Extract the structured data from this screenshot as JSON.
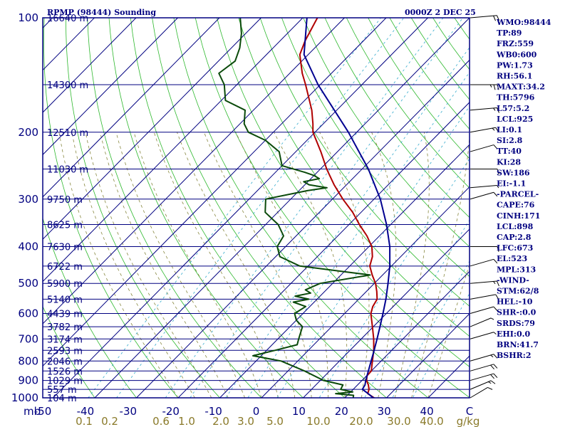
{
  "header": {
    "station": "RPMP (98444) Sounding",
    "time": "0000Z  2 DEC 25"
  },
  "chart_data": {
    "type": "line",
    "title": "RPMP (98444) Sounding",
    "subtitle": "0000Z  2 DEC 25",
    "xlabel": "°C",
    "ylabel": "mb",
    "temperature_range_c": [
      -50,
      50
    ],
    "pressure_range_mb": [
      1000,
      100
    ],
    "temperature_ticks": [
      "-50",
      "-40",
      "-30",
      "-20",
      "-10",
      "0",
      "10",
      "20",
      "30",
      "40",
      "C"
    ],
    "mixing_ratio_ticks": [
      "0.1",
      "0.2",
      "0.6",
      "1.0",
      "2.0",
      "3.0",
      "5.0",
      "10.0",
      "20.0",
      "30.0",
      "40.0",
      "g/kg"
    ],
    "pressure_levels": [
      {
        "p": 100,
        "label": "100",
        "height": "16640 m"
      },
      {
        "p": 150,
        "label": "",
        "height": "14300 m"
      },
      {
        "p": 200,
        "label": "200",
        "height": "12510 m"
      },
      {
        "p": 250,
        "label": "",
        "height": "11030 m"
      },
      {
        "p": 300,
        "label": "300",
        "height": "9750 m"
      },
      {
        "p": 350,
        "label": "",
        "height": "8625 m"
      },
      {
        "p": 400,
        "label": "400",
        "height": "7630 m"
      },
      {
        "p": 450,
        "label": "",
        "height": "6722 m"
      },
      {
        "p": 500,
        "label": "500",
        "height": "5900 m"
      },
      {
        "p": 550,
        "label": "",
        "height": "5140 m"
      },
      {
        "p": 600,
        "label": "600",
        "height": "4439 m"
      },
      {
        "p": 650,
        "label": "",
        "height": "3782 m"
      },
      {
        "p": 700,
        "label": "700",
        "height": "3174 m"
      },
      {
        "p": 750,
        "label": "",
        "height": "2593 m"
      },
      {
        "p": 800,
        "label": "800",
        "height": "2046 m"
      },
      {
        "p": 850,
        "label": "",
        "height": "1526 m"
      },
      {
        "p": 900,
        "label": "900",
        "height": "1029 m"
      },
      {
        "p": 950,
        "label": "",
        "height": "557 m"
      },
      {
        "p": 1000,
        "label": "1000",
        "height": "104 m"
      }
    ],
    "series": [
      {
        "name": "Temperature",
        "color": "#b00000",
        "points": [
          [
            1008,
            28.0
          ],
          [
            1000,
            27.0
          ],
          [
            975,
            24.5
          ],
          [
            950,
            23.8
          ],
          [
            925,
            22.6
          ],
          [
            900,
            21.1
          ],
          [
            875,
            20.1
          ],
          [
            850,
            20.0
          ],
          [
            800,
            17.9
          ],
          [
            750,
            15.7
          ],
          [
            700,
            13.0
          ],
          [
            650,
            9.8
          ],
          [
            600,
            6.3
          ],
          [
            575,
            5.1
          ],
          [
            550,
            4.4
          ],
          [
            525,
            2.5
          ],
          [
            500,
            0.3
          ],
          [
            475,
            -2.5
          ],
          [
            450,
            -5.2
          ],
          [
            425,
            -6.8
          ],
          [
            400,
            -9.3
          ],
          [
            375,
            -13.0
          ],
          [
            350,
            -17.5
          ],
          [
            325,
            -22.0
          ],
          [
            300,
            -27.5
          ],
          [
            275,
            -33.0
          ],
          [
            250,
            -38.5
          ],
          [
            225,
            -44.0
          ],
          [
            200,
            -50.5
          ],
          [
            190,
            -52.5
          ],
          [
            175,
            -56.0
          ],
          [
            150,
            -63.5
          ],
          [
            140,
            -67.0
          ],
          [
            125,
            -72.0
          ],
          [
            115,
            -74.0
          ],
          [
            100,
            -76.5
          ]
        ]
      },
      {
        "name": "Dewpoint",
        "color": "#0a4a0a",
        "points": [
          [
            1008,
            22.5
          ],
          [
            1000,
            22.0
          ],
          [
            985,
            21.5
          ],
          [
            975,
            16.8
          ],
          [
            965,
            20.5
          ],
          [
            950,
            17.0
          ],
          [
            925,
            16.5
          ],
          [
            900,
            10.8
          ],
          [
            850,
            4.0
          ],
          [
            800,
            -4.0
          ],
          [
            775,
            -12.0
          ],
          [
            750,
            -8.0
          ],
          [
            725,
            -4.0
          ],
          [
            700,
            -5.0
          ],
          [
            650,
            -7.0
          ],
          [
            625,
            -10.0
          ],
          [
            600,
            -12.0
          ],
          [
            575,
            -11.0
          ],
          [
            560,
            -15.0
          ],
          [
            550,
            -12.0
          ],
          [
            540,
            -16.0
          ],
          [
            530,
            -13.0
          ],
          [
            520,
            -15.0
          ],
          [
            500,
            -13.0
          ],
          [
            475,
            -3.0
          ],
          [
            450,
            -22.0
          ],
          [
            425,
            -29.0
          ],
          [
            400,
            -32.0
          ],
          [
            375,
            -33.0
          ],
          [
            350,
            -37.0
          ],
          [
            325,
            -43.0
          ],
          [
            300,
            -46.0
          ],
          [
            285,
            -38.0
          ],
          [
            280,
            -34.0
          ],
          [
            275,
            -39.0
          ],
          [
            270,
            -41.0
          ],
          [
            265,
            -38.0
          ],
          [
            260,
            -40.0
          ],
          [
            255,
            -43.0
          ],
          [
            245,
            -50.0
          ],
          [
            225,
            -54.0
          ],
          [
            210,
            -60.0
          ],
          [
            200,
            -66.0
          ],
          [
            190,
            -69.0
          ],
          [
            175,
            -72.0
          ],
          [
            165,
            -79.0
          ],
          [
            150,
            -83.0
          ],
          [
            140,
            -87.0
          ],
          [
            130,
            -86.0
          ],
          [
            120,
            -88.0
          ],
          [
            110,
            -91.0
          ],
          [
            100,
            -95.0
          ]
        ]
      },
      {
        "name": "Parcel",
        "color": "#000090",
        "points": [
          [
            1008,
            28.0
          ],
          [
            1000,
            26.8
          ],
          [
            975,
            24.6
          ],
          [
            950,
            22.2
          ],
          [
            925,
            21.8
          ],
          [
            900,
            20.9
          ],
          [
            850,
            19.3
          ],
          [
            800,
            17.6
          ],
          [
            750,
            15.8
          ],
          [
            700,
            13.8
          ],
          [
            650,
            11.6
          ],
          [
            600,
            9.2
          ],
          [
            550,
            6.5
          ],
          [
            500,
            3.3
          ],
          [
            450,
            -0.4
          ],
          [
            400,
            -5.0
          ],
          [
            350,
            -11.0
          ],
          [
            300,
            -18.5
          ],
          [
            250,
            -28.5
          ],
          [
            200,
            -42.0
          ],
          [
            150,
            -60.5
          ],
          [
            125,
            -71.0
          ],
          [
            100,
            -79.0
          ]
        ]
      }
    ],
    "wind_barbs": [
      {
        "p": 100,
        "dir": 80,
        "spd": 20
      },
      {
        "p": 150,
        "dir": 90,
        "spd": 25
      },
      {
        "p": 175,
        "dir": 80,
        "spd": 15
      },
      {
        "p": 200,
        "dir": 70,
        "spd": 15
      },
      {
        "p": 225,
        "dir": 60,
        "spd": 10
      },
      {
        "p": 250,
        "dir": 90,
        "spd": 10
      },
      {
        "p": 280,
        "dir": 100,
        "spd": 5
      },
      {
        "p": 300,
        "dir": 120,
        "spd": 10
      },
      {
        "p": 400,
        "dir": 90,
        "spd": 10
      },
      {
        "p": 450,
        "dir": 60,
        "spd": 10
      },
      {
        "p": 500,
        "dir": 80,
        "spd": 15
      },
      {
        "p": 550,
        "dir": 70,
        "spd": 10
      },
      {
        "p": 600,
        "dir": 60,
        "spd": 10
      },
      {
        "p": 650,
        "dir": 50,
        "spd": 5
      },
      {
        "p": 700,
        "dir": 60,
        "spd": 5
      },
      {
        "p": 800,
        "dir": 60,
        "spd": 15
      },
      {
        "p": 850,
        "dir": 60,
        "spd": 20
      },
      {
        "p": 900,
        "dir": 60,
        "spd": 20
      },
      {
        "p": 950,
        "dir": 50,
        "spd": 15
      },
      {
        "p": 1000,
        "dir": 40,
        "spd": 10
      }
    ],
    "indices": [
      "WMO:98444",
      "TP:89",
      "FRZ:559",
      "WB0:600",
      "PW:1.73",
      "RH:56.1",
      "MAXT:34.2",
      "TH:5796",
      "L57:5.2",
      "LCL:925",
      "LI:0.1",
      "SI:2.8",
      "TT:40",
      "KI:28",
      "SW:186",
      "EI:-1.1",
      "-PARCEL-",
      "CAPE:76",
      "CINH:171",
      "LCL:898",
      "CAP:2.8",
      "LFC:673",
      "EL:523",
      "MPL:313",
      "-WIND-",
      "STM:62/8",
      "HEL:-10",
      "SHR-:0.0",
      "SRDS:79",
      "EHI:0.0",
      "BRN:41.7",
      "BSHR:2"
    ]
  }
}
